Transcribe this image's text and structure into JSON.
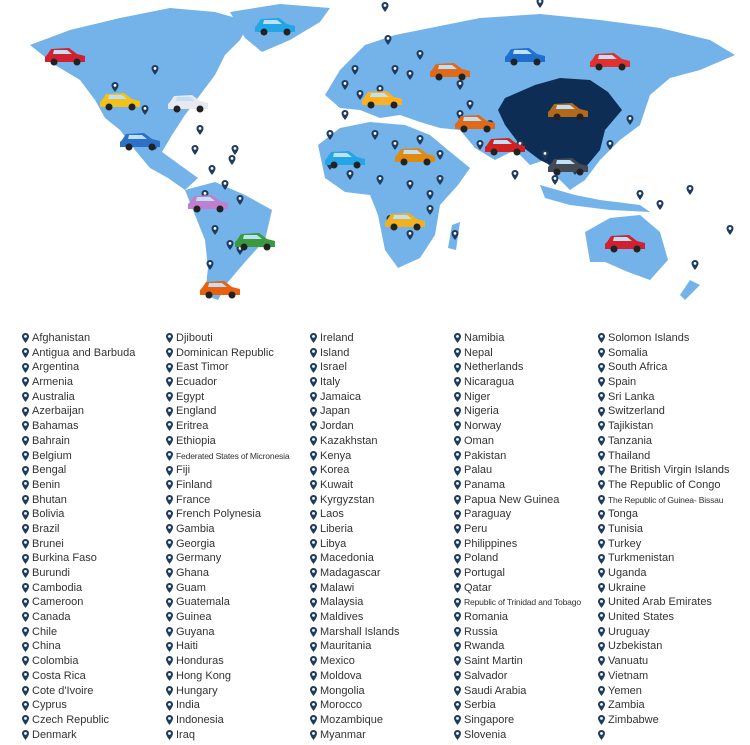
{
  "colors": {
    "land": "#73b3ea",
    "highlight": "#0d2d55",
    "pin": "#1f3b5e",
    "text": "#333333"
  },
  "map": {
    "highlighted_country": "China",
    "car_colors": [
      "#d22030",
      "#22a6e8",
      "#1f6fd1",
      "#e03030",
      "#e06a1a",
      "#f2c21a",
      "#e8e8f0",
      "#ffb020",
      "#2c70c8",
      "#b26a1a",
      "#e06a1a",
      "#d02020",
      "#e08a10",
      "#c080d0",
      "#3a9a40",
      "#444a55",
      "#f0b020",
      "#e86010"
    ]
  },
  "columns": [
    [
      "Afghanistan",
      "Antigua and Barbuda",
      "Argentina",
      "Armenia",
      "Australia",
      "Azerbaijan",
      "Bahamas",
      "Bahrain",
      "Belgium",
      "Bengal",
      "Benin",
      "Bhutan",
      "Bolivia",
      "Brazil",
      "Brunei",
      "Burkina Faso",
      "Burundi",
      "Cambodia",
      "Cameroon",
      "Canada",
      "Chile",
      "China",
      "Colombia",
      "Costa Rica",
      "Cote d'Ivoire",
      "Cyprus",
      "Czech Republic",
      "Denmark"
    ],
    [
      "Djibouti",
      "Dominican Republic",
      "East Timor",
      "Ecuador",
      "Egypt",
      "England",
      "Eritrea",
      "Ethiopia",
      "Federated States of Micronesia",
      "Fiji",
      "Finland",
      "France",
      "French Polynesia",
      "Gambia",
      "Georgia",
      "Germany",
      "Ghana",
      "Guam",
      "Guatemala",
      "Guinea",
      "Guyana",
      "Haiti",
      "Honduras",
      "Hong Kong",
      "Hungary",
      "India",
      "Indonesia",
      "Iraq"
    ],
    [
      "Ireland",
      "Island",
      "Israel",
      "Italy",
      "Jamaica",
      "Japan",
      "Jordan",
      "Kazakhstan",
      "Kenya",
      "Korea",
      "Kuwait",
      "Kyrgyzstan",
      "Laos",
      "Liberia",
      "Libya",
      "Macedonia",
      "Madagascar",
      "Malawi",
      "Malaysia",
      "Maldives",
      "Marshall Islands",
      "Mauritania",
      "Mexico",
      "Moldova",
      "Mongolia",
      "Morocco",
      "Mozambique",
      "Myanmar"
    ],
    [
      "Namibia",
      "Nepal",
      "Netherlands",
      "Nicaragua",
      "Niger",
      "Nigeria",
      "Norway",
      "Oman",
      "Pakistan",
      "Palau",
      "Panama",
      "Papua New Guinea",
      "Paraguay",
      "Peru",
      "Philippines",
      "Poland",
      "Portugal",
      "Qatar",
      "Republic of Trinidad and Tobago",
      "Romania",
      "Russia",
      "Rwanda",
      "Saint Martin",
      "Salvador",
      "Saudi Arabia",
      "Serbia",
      "Singapore",
      "Slovenia"
    ],
    [
      "Solomon Islands",
      "Somalia",
      "South Africa",
      "Spain",
      "Sri Lanka",
      "Switzerland",
      "Tajikistan",
      "Tanzania",
      "Thailand",
      "The British Virgin Islands",
      "The Republic of Congo",
      "The Republic of Guinea- Bissau",
      "Tonga",
      "Tunisia",
      "Turkey",
      "Turkmenistan",
      "Uganda",
      "Ukraine",
      "United Arab Emirates",
      "United States",
      "Uruguay",
      "Uzbekistan",
      "Vanuatu",
      "Vietnam",
      "Yemen",
      "Zambia",
      "Zimbabwe",
      ""
    ]
  ]
}
